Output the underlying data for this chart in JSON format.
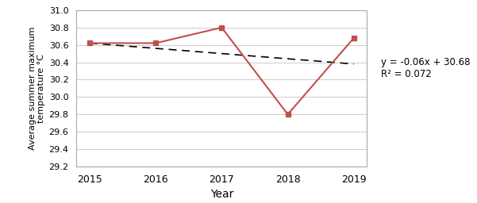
{
  "years": [
    2015,
    2016,
    2017,
    2018,
    2019
  ],
  "temps": [
    30.62,
    30.62,
    30.8,
    29.8,
    30.68
  ],
  "trend_slope": -0.06,
  "trend_intercept": 30.68,
  "trend_x_indices": [
    1,
    2,
    3,
    4,
    5
  ],
  "line_color": "#C0504D",
  "trend_color": "#000000",
  "marker": "s",
  "marker_size": 5,
  "ylabel": "Average summer maximum\ntemperature °C",
  "xlabel": "Year",
  "ylim": [
    29.2,
    31.0
  ],
  "yticks": [
    29.2,
    29.4,
    29.6,
    29.8,
    30.0,
    30.2,
    30.4,
    30.6,
    30.8,
    31.0
  ],
  "equation_text": "y = -0.06x + 30.68",
  "r2_text": "R² = 0.072",
  "grid_color": "#cccccc",
  "background_color": "#ffffff",
  "spine_color": "#aaaaaa"
}
